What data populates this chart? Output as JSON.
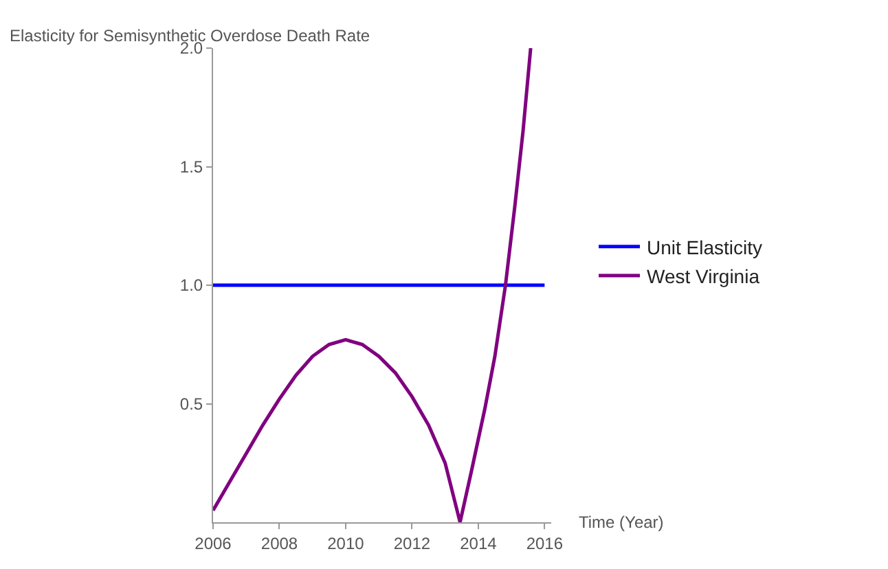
{
  "chart_data": {
    "type": "line",
    "title": "Elasticity for Semisynthetic Overdose Death Rate",
    "xlabel": "Time (Year)",
    "xlim": [
      2006,
      2016.2
    ],
    "xticks": [
      2006,
      2008,
      2010,
      2012,
      2014,
      2016
    ],
    "ylim": [
      0,
      2.0
    ],
    "yticks": [
      {
        "value": 0.5,
        "label": "0.5"
      },
      {
        "value": 1.0,
        "label": "1.0"
      },
      {
        "value": 1.5,
        "label": "1.5"
      },
      {
        "value": 2.0,
        "label": "2.0"
      }
    ],
    "legend": "right",
    "line_style": "solid",
    "marker": "none",
    "series": [
      {
        "name": "Unit Elasticity",
        "color": "#0000ff",
        "x": [
          2006,
          2016
        ],
        "values": [
          1.0,
          1.0
        ]
      },
      {
        "name": "West Virginia",
        "color": "#800080",
        "x": [
          2006,
          2006.5,
          2007,
          2007.5,
          2008,
          2008.5,
          2009,
          2009.5,
          2010,
          2010.5,
          2011,
          2011.5,
          2012,
          2012.5,
          2013,
          2013.45,
          2013.8,
          2014.2,
          2014.5,
          2014.82,
          2015.1,
          2015.35,
          2015.58
        ],
        "values": [
          0.05,
          0.17,
          0.29,
          0.41,
          0.52,
          0.62,
          0.7,
          0.75,
          0.77,
          0.75,
          0.7,
          0.63,
          0.53,
          0.41,
          0.25,
          0.0,
          0.22,
          0.48,
          0.7,
          1.0,
          1.33,
          1.65,
          2.0
        ]
      }
    ]
  }
}
